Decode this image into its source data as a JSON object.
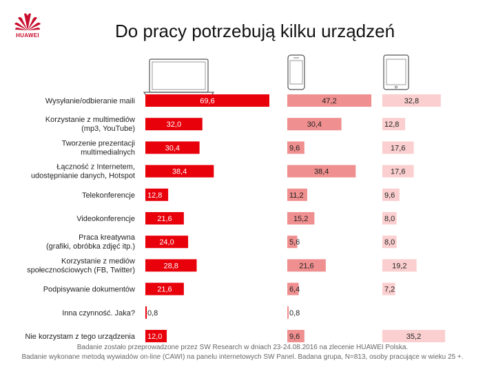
{
  "brand": {
    "name": "HUAWEI",
    "color": "#c8102e"
  },
  "title": "Do pracy potrzebują kilku urządzeń",
  "chart_data": {
    "type": "bar",
    "orientation": "horizontal",
    "title": "Do pracy potrzebują kilku urządzeń",
    "device_icons": [
      "laptop-icon",
      "smartphone-icon",
      "tablet-icon"
    ],
    "categories": [
      [
        "Wysyłanie/odbieranie maili"
      ],
      [
        "Korzystanie z multimediów",
        "(mp3, YouTube)"
      ],
      [
        "Tworzenie prezentacji",
        "multimedialnych"
      ],
      [
        "Łączność z Internetem,",
        "udostępnianie danych, Hotspot"
      ],
      [
        "Telekonferencje"
      ],
      [
        "Videokonferencje"
      ],
      [
        "Praca kreatywna",
        "(grafiki, obróbka zdjęć itp.)"
      ],
      [
        "Korzystanie z mediów",
        "społecznościowych (FB, Twitter)"
      ],
      [
        "Podpisywanie dokumentów"
      ],
      [
        "Inna czynność. Jaka?"
      ],
      [
        "Nie korzystam z tego urządzenia"
      ]
    ],
    "series": [
      {
        "icon": "laptop-icon",
        "color": "#e8000b",
        "values": [
          69.6,
          32.0,
          30.4,
          38.4,
          12.8,
          21.6,
          24.0,
          28.8,
          21.6,
          0.8,
          12.0
        ],
        "labels": [
          "69,6",
          "32,0",
          "30,4",
          "38,4",
          "12,8",
          "21,6",
          "24,0",
          "28,8",
          "21,6",
          "0,8",
          "12,0"
        ]
      },
      {
        "icon": "smartphone-icon",
        "color": "#f08f8f",
        "values": [
          47.2,
          30.4,
          9.6,
          38.4,
          11.2,
          15.2,
          5.6,
          21.6,
          6.4,
          0.8,
          9.6
        ],
        "labels": [
          "47,2",
          "30,4",
          "9,6",
          "38,4",
          "11,2",
          "15,2",
          "5,6",
          "21,6",
          "6,4",
          "0,8",
          "9,6"
        ]
      },
      {
        "icon": "tablet-icon",
        "color": "#fbcfcf",
        "values": [
          32.8,
          12.8,
          17.6,
          17.6,
          9.6,
          8.0,
          8.0,
          19.2,
          7.2,
          0.0,
          35.2
        ],
        "labels": [
          "32,8",
          "12,8",
          "17,6",
          "17,6",
          "9,6",
          "8,0",
          "8,0",
          "19,2",
          "7,2",
          "",
          "35,2"
        ]
      }
    ]
  },
  "footer": {
    "line1": "Badanie zostało przeprowadzone przez SW Research w dniach 23-24.08.2016 na zlecenie HUAWEI Polska.",
    "line2": "Badanie wykonane metodą wywiadów on-line (CAWI) na panelu internetowych SW Panel. Badana grupa, N=813, osoby pracujące w wieku 25 +."
  }
}
